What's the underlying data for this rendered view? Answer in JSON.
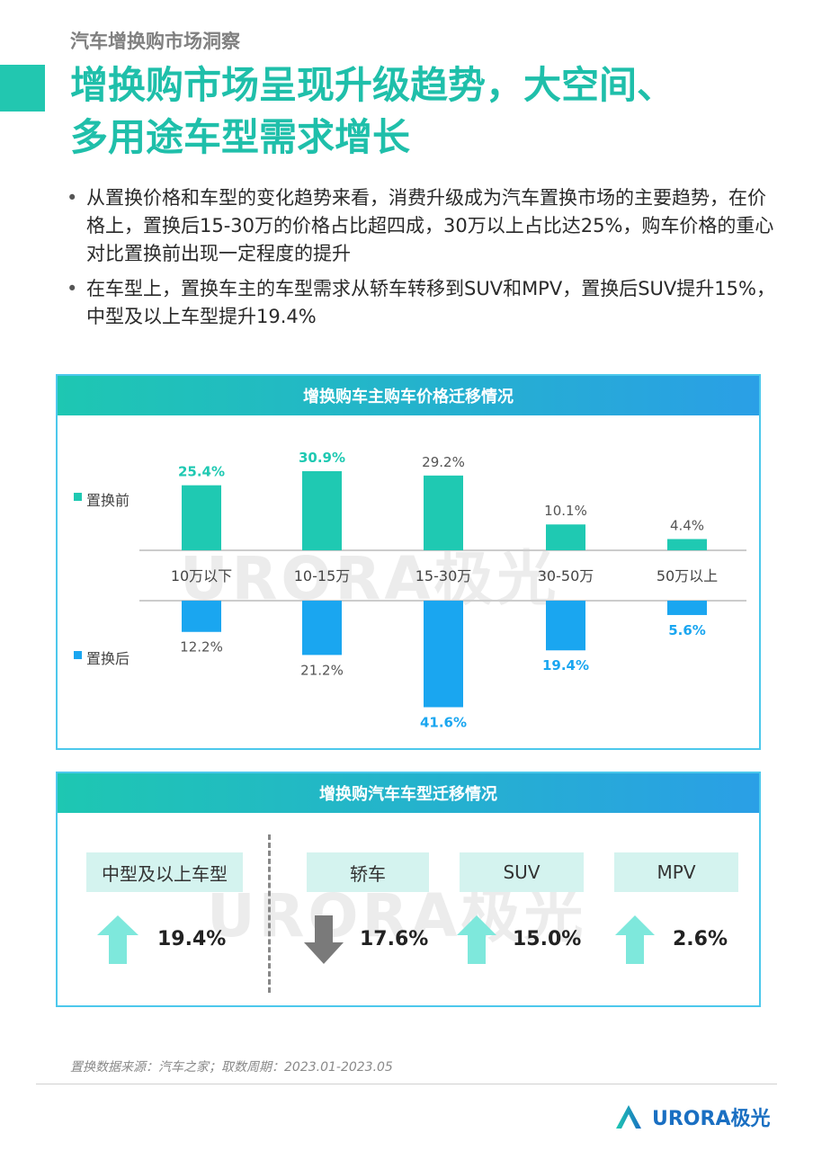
{
  "header": {
    "kicker": "汽车增换购市场洞察",
    "headline_line1": "增换购市场呈现升级趋势，大空间、",
    "headline_line2": "多用途车型需求增长"
  },
  "bullets": [
    "从置换价格和车型的变化趋势来看，消费升级成为汽车置换市场的主要趋势，在价格上，置换后15-30万的价格占比超四成，30万以上占比达25%，购车价格的重心对比置换前出现一定程度的提升",
    "在车型上，置换车主的车型需求从轿车转移到SUV和MPV，置换后SUV提升15%，中型及以上车型提升19.4%"
  ],
  "bullet_symbol": "•",
  "chart_data": [
    {
      "type": "bar",
      "title": "增换购车主购车价格迁移情况",
      "categories": [
        "10万以下",
        "10-15万",
        "15-30万",
        "30-50万",
        "50万以上"
      ],
      "series": [
        {
          "name": "置换前",
          "values": [
            25.4,
            30.9,
            29.2,
            10.1,
            4.4
          ],
          "labels": [
            "25.4%",
            "30.9%",
            "29.2%",
            "10.1%",
            "4.4%"
          ],
          "color": "#1fc9b2"
        },
        {
          "name": "置换后",
          "values": [
            12.2,
            21.2,
            41.6,
            19.4,
            5.6
          ],
          "labels": [
            "12.2%",
            "21.2%",
            "41.6%",
            "19.4%",
            "5.6%"
          ],
          "color": "#1aa6f0"
        }
      ],
      "highlight_colors": {
        "teal": "#1fc9b2",
        "blue": "#1aa6f0",
        "plain": "#555555"
      },
      "highlighted": {
        "置换前": [
          true,
          true,
          false,
          false,
          false
        ],
        "置换后": [
          false,
          false,
          true,
          true,
          true
        ]
      },
      "legend_position": "left"
    },
    {
      "type": "table",
      "title": "增换购汽车车型迁移情况",
      "items": [
        {
          "label": "中型及以上车型",
          "value": "19.4%",
          "direction": "up"
        },
        {
          "label": "轿车",
          "value": "17.6%",
          "direction": "down"
        },
        {
          "label": "SUV",
          "value": "15.0%",
          "direction": "up"
        },
        {
          "label": "MPV",
          "value": "2.6%",
          "direction": "up"
        }
      ],
      "colors": {
        "up": "#7ee8dc",
        "down": "#7a7a7a"
      }
    }
  ],
  "watermark": "URORA极光",
  "source": "置换数据来源：汽车之家；取数周期：2023.01-2023.05",
  "logo": {
    "text": "URORA极光",
    "brand_color": "#1a6fc2"
  }
}
